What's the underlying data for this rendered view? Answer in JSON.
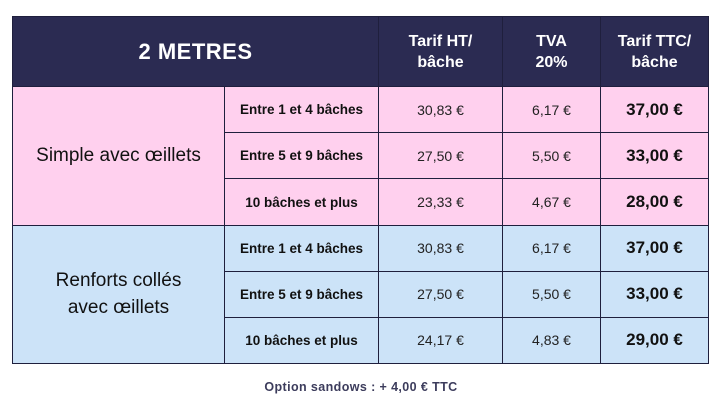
{
  "table": {
    "title": "2 METRES",
    "headers": {
      "ht": [
        "Tarif HT/",
        "bâche"
      ],
      "tva": [
        "TVA",
        "20%"
      ],
      "ttc": [
        "Tarif TTC/",
        "bâche"
      ]
    },
    "groups": [
      {
        "label_lines": [
          "Simple avec œillets"
        ],
        "color": "#ffd0ee",
        "rows": [
          {
            "range": "Entre 1 et 4 bâches",
            "ht": "30,83 €",
            "tva": "6,17 €",
            "ttc": "37,00 €"
          },
          {
            "range": "Entre 5 et 9 bâches",
            "ht": "27,50 €",
            "tva": "5,50 €",
            "ttc": "33,00 €"
          },
          {
            "range": "10 bâches et plus",
            "ht": "23,33 €",
            "tva": "4,67 €",
            "ttc": "28,00 €"
          }
        ]
      },
      {
        "label_lines": [
          "Renforts collés",
          "avec œillets"
        ],
        "color": "#cce3f8",
        "rows": [
          {
            "range": "Entre 1 et 4 bâches",
            "ht": "30,83 €",
            "tva": "6,17 €",
            "ttc": "37,00 €"
          },
          {
            "range": "Entre 5 et 9 bâches",
            "ht": "27,50 €",
            "tva": "5,50 €",
            "ttc": "33,00 €"
          },
          {
            "range": "10 bâches et plus",
            "ht": "24,17 €",
            "tva": "4,83 €",
            "ttc": "29,00 €"
          }
        ]
      }
    ]
  },
  "footnote": "Option sandows : + 4,00 € TTC",
  "colors": {
    "header": "#2b2b52",
    "pink": "#ffd0ee",
    "blue": "#cce3f8",
    "border": "#1f1f3d"
  }
}
